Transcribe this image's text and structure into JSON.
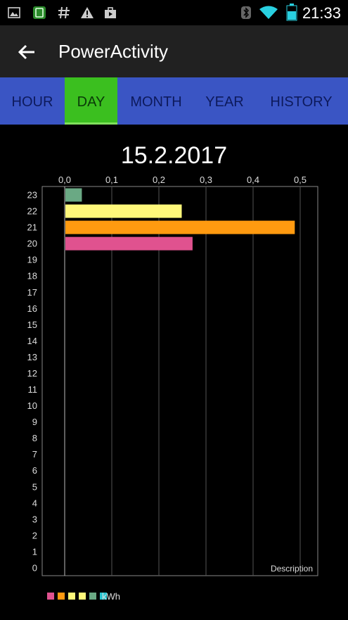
{
  "status_bar": {
    "left_icons": [
      "image-icon",
      "app-icon",
      "hash-icon",
      "warning-icon",
      "briefcase-icon"
    ],
    "right_icons": [
      "bluetooth-icon",
      "wifi-icon",
      "battery-icon"
    ],
    "time": "21:33"
  },
  "app_bar": {
    "title": "PowerActivity"
  },
  "tabs": [
    {
      "label": "HOUR"
    },
    {
      "label": "DAY",
      "active": true
    },
    {
      "label": "MONTH"
    },
    {
      "label": "YEAR"
    },
    {
      "label": "HISTORY"
    }
  ],
  "date": "15.2.2017",
  "chart_data": {
    "type": "bar",
    "orientation": "horizontal",
    "categories": [
      "23",
      "22",
      "21",
      "20",
      "19",
      "18",
      "17",
      "16",
      "15",
      "14",
      "13",
      "12",
      "11",
      "10",
      "9",
      "8",
      "7",
      "6",
      "5",
      "4",
      "3",
      "2",
      "1",
      "0"
    ],
    "values": [
      0.035,
      0.247,
      0.487,
      0.27,
      0,
      0,
      0,
      0,
      0,
      0,
      0,
      0,
      0,
      0,
      0,
      0,
      0,
      0,
      0,
      0,
      0,
      0,
      0,
      0
    ],
    "bar_colors": [
      "#6aa984",
      "#fff87a",
      "#ff9a10",
      "#e0528f"
    ],
    "x_ticks": [
      "0,0",
      "0,1",
      "0,2",
      "0,3",
      "0,4",
      "0,5"
    ],
    "xlim": [
      0,
      0.55
    ],
    "description": "Description",
    "legend": {
      "colors": [
        "#e0528f",
        "#ff9a10",
        "#fff87a",
        "#fff87a",
        "#6aa984",
        "#29c5d0"
      ],
      "label": "kWh"
    }
  }
}
